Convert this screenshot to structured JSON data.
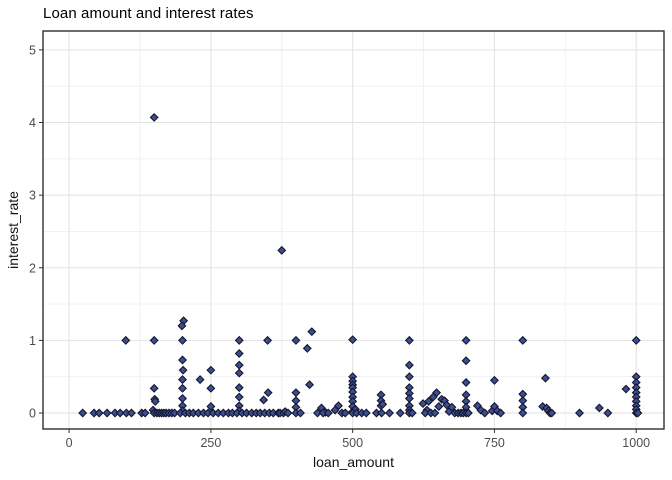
{
  "figure": {
    "title": "Loan amount and interest rates",
    "xlabel": "loan_amount",
    "ylabel": "interest_rate"
  },
  "chart_data": {
    "type": "scatter",
    "title": "Loan amount and interest rates",
    "xlabel": "loan_amount",
    "ylabel": "interest_rate",
    "x_ticks": [
      0,
      250,
      500,
      750,
      1000
    ],
    "y_ticks": [
      0,
      1,
      2,
      3,
      4,
      5
    ],
    "xlim": [
      -46,
      1049
    ],
    "ylim": [
      -0.22,
      5.26
    ],
    "grid": {
      "major": true,
      "minor": true
    },
    "legend": "none",
    "marker": "filled-diamond",
    "colors": {
      "point_fill": "#3d4e8e",
      "point_stroke": "#15162e",
      "grid_major": "#e2e2e2",
      "grid_minor": "#f0f0f0",
      "panel_border": "#2f2f2f",
      "tick_mark": "#333333",
      "tick_label": "#4d4d4d",
      "axis_title": "#111111",
      "title": "#000000",
      "background": "#ffffff"
    },
    "points": [
      [
        150,
        4.07
      ],
      [
        375,
        2.24
      ],
      [
        100,
        1.0
      ],
      [
        150,
        1.0
      ],
      [
        202,
        1.27
      ],
      [
        199,
        1.2
      ],
      [
        200,
        1.0
      ],
      [
        300,
        1.0
      ],
      [
        350,
        1.0
      ],
      [
        400,
        1.0
      ],
      [
        420,
        0.89
      ],
      [
        428,
        1.12
      ],
      [
        500,
        1.01
      ],
      [
        600,
        1.0
      ],
      [
        700,
        1.0
      ],
      [
        800,
        1.0
      ],
      [
        1000,
        1.0
      ],
      [
        150,
        0.34
      ],
      [
        151,
        0.19
      ],
      [
        152,
        0.16
      ],
      [
        148,
        0.04
      ],
      [
        200,
        0.73
      ],
      [
        201,
        0.59
      ],
      [
        200,
        0.46
      ],
      [
        200,
        0.34
      ],
      [
        200,
        0.2
      ],
      [
        200,
        0.1
      ],
      [
        200,
        0.03
      ],
      [
        231,
        0.46
      ],
      [
        250,
        0.59
      ],
      [
        250,
        0.34
      ],
      [
        250,
        0.09
      ],
      [
        300,
        0.82
      ],
      [
        300,
        0.66
      ],
      [
        300,
        0.55
      ],
      [
        300,
        0.35
      ],
      [
        300,
        0.22
      ],
      [
        300,
        0.1
      ],
      [
        300,
        0.03
      ],
      [
        343,
        0.18
      ],
      [
        351,
        0.28
      ],
      [
        400,
        0.28
      ],
      [
        400,
        0.17
      ],
      [
        400,
        0.08
      ],
      [
        424,
        0.39
      ],
      [
        445,
        0.07
      ],
      [
        452,
        0.01
      ],
      [
        469,
        0.04
      ],
      [
        475,
        0.1
      ],
      [
        500,
        0.5
      ],
      [
        500,
        0.44
      ],
      [
        500,
        0.39
      ],
      [
        500,
        0.35
      ],
      [
        500,
        0.29
      ],
      [
        500,
        0.22
      ],
      [
        500,
        0.16
      ],
      [
        500,
        0.09
      ],
      [
        500,
        0.02
      ],
      [
        505,
        0.05
      ],
      [
        550,
        0.25
      ],
      [
        550,
        0.17
      ],
      [
        550,
        0.1
      ],
      [
        553,
        0.12
      ],
      [
        600,
        0.66
      ],
      [
        600,
        0.5
      ],
      [
        600,
        0.35
      ],
      [
        600,
        0.27
      ],
      [
        600,
        0.2
      ],
      [
        600,
        0.1
      ],
      [
        600,
        0.04
      ],
      [
        624,
        0.13
      ],
      [
        631,
        0.04
      ],
      [
        634,
        0.16
      ],
      [
        642,
        0.22
      ],
      [
        648,
        0.28
      ],
      [
        652,
        0.09
      ],
      [
        657,
        0.19
      ],
      [
        662,
        0.17
      ],
      [
        666,
        0.11
      ],
      [
        670,
        0.02
      ],
      [
        675,
        0.08
      ],
      [
        700,
        0.72
      ],
      [
        700,
        0.42
      ],
      [
        700,
        0.25
      ],
      [
        700,
        0.16
      ],
      [
        700,
        0.08
      ],
      [
        720,
        0.1
      ],
      [
        726,
        0.04
      ],
      [
        746,
        0.03
      ],
      [
        750,
        0.45
      ],
      [
        750,
        0.09
      ],
      [
        755,
        0.03
      ],
      [
        800,
        0.26
      ],
      [
        800,
        0.17
      ],
      [
        800,
        0.08
      ],
      [
        835,
        0.09
      ],
      [
        840,
        0.48
      ],
      [
        842,
        0.07
      ],
      [
        845,
        0.03
      ],
      [
        935,
        0.07
      ],
      [
        982,
        0.33
      ],
      [
        1000,
        0.5
      ],
      [
        1000,
        0.42
      ],
      [
        1000,
        0.35
      ],
      [
        1000,
        0.28
      ],
      [
        1000,
        0.22
      ],
      [
        1000,
        0.16
      ],
      [
        1000,
        0.1
      ],
      [
        1000,
        0.05
      ],
      [
        24,
        0
      ],
      [
        44,
        0
      ],
      [
        53,
        0
      ],
      [
        67,
        0
      ],
      [
        81,
        0
      ],
      [
        90,
        0
      ],
      [
        101,
        0
      ],
      [
        110,
        0
      ],
      [
        128,
        0
      ],
      [
        134,
        0
      ],
      [
        150,
        0
      ],
      [
        155,
        0
      ],
      [
        159,
        0
      ],
      [
        163,
        0
      ],
      [
        167,
        0
      ],
      [
        171,
        0
      ],
      [
        176,
        0
      ],
      [
        181,
        0
      ],
      [
        186,
        0
      ],
      [
        196,
        0
      ],
      [
        205,
        0
      ],
      [
        212,
        0
      ],
      [
        219,
        0
      ],
      [
        228,
        0
      ],
      [
        237,
        0
      ],
      [
        245,
        0
      ],
      [
        254,
        0
      ],
      [
        263,
        0
      ],
      [
        272,
        0
      ],
      [
        281,
        0
      ],
      [
        288,
        0
      ],
      [
        296,
        0
      ],
      [
        305,
        0
      ],
      [
        313,
        0
      ],
      [
        322,
        0
      ],
      [
        330,
        0
      ],
      [
        337,
        0
      ],
      [
        345,
        0
      ],
      [
        353,
        0
      ],
      [
        360,
        0
      ],
      [
        369,
        0
      ],
      [
        372,
        0
      ],
      [
        378,
        0
      ],
      [
        381,
        0.02
      ],
      [
        386,
        0
      ],
      [
        400,
        0
      ],
      [
        408,
        0
      ],
      [
        438,
        0
      ],
      [
        448,
        0
      ],
      [
        457,
        0
      ],
      [
        481,
        0
      ],
      [
        487,
        0
      ],
      [
        500,
        0
      ],
      [
        507,
        0
      ],
      [
        516,
        0
      ],
      [
        524,
        0
      ],
      [
        542,
        0
      ],
      [
        551,
        0
      ],
      [
        565,
        0
      ],
      [
        584,
        0
      ],
      [
        600,
        0
      ],
      [
        605,
        0
      ],
      [
        628,
        0
      ],
      [
        638,
        0
      ],
      [
        645,
        0
      ],
      [
        680,
        0
      ],
      [
        686,
        0
      ],
      [
        691,
        0
      ],
      [
        695,
        0
      ],
      [
        700,
        0
      ],
      [
        704,
        0
      ],
      [
        733,
        0
      ],
      [
        761,
        0
      ],
      [
        800,
        0
      ],
      [
        848,
        0
      ],
      [
        851,
        0
      ],
      [
        900,
        0
      ],
      [
        950,
        0
      ],
      [
        1000,
        0
      ],
      [
        1003,
        0
      ]
    ]
  }
}
